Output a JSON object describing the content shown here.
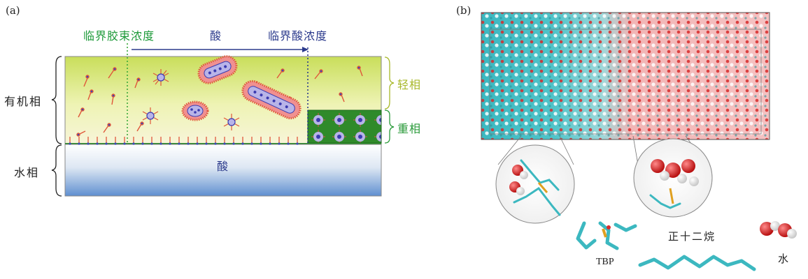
{
  "panel_a": {
    "label": "(a)",
    "cmc_label": "临界胶束浓度",
    "acid_arrow_label": "酸",
    "critical_acid_label": "临界酸浓度",
    "organic_phase_label": "有机相",
    "aqueous_phase_label": "水相",
    "aqueous_acid_label": "酸",
    "light_phase_label": "轻相",
    "heavy_phase_label": "重相"
  },
  "panel_b": {
    "label": "(b)",
    "dodecane_label": "正十二烷",
    "tbp_label": "TBP",
    "water_label": "水"
  },
  "colors": {
    "green_text": "#1e9a3a",
    "blue_text": "#2b3a8c",
    "light_phase_text": "#a8b82a",
    "heavy_phase_text": "#2a9a3a",
    "teal": "#3cb8c0",
    "oxygen_red": "#d82a2a"
  }
}
